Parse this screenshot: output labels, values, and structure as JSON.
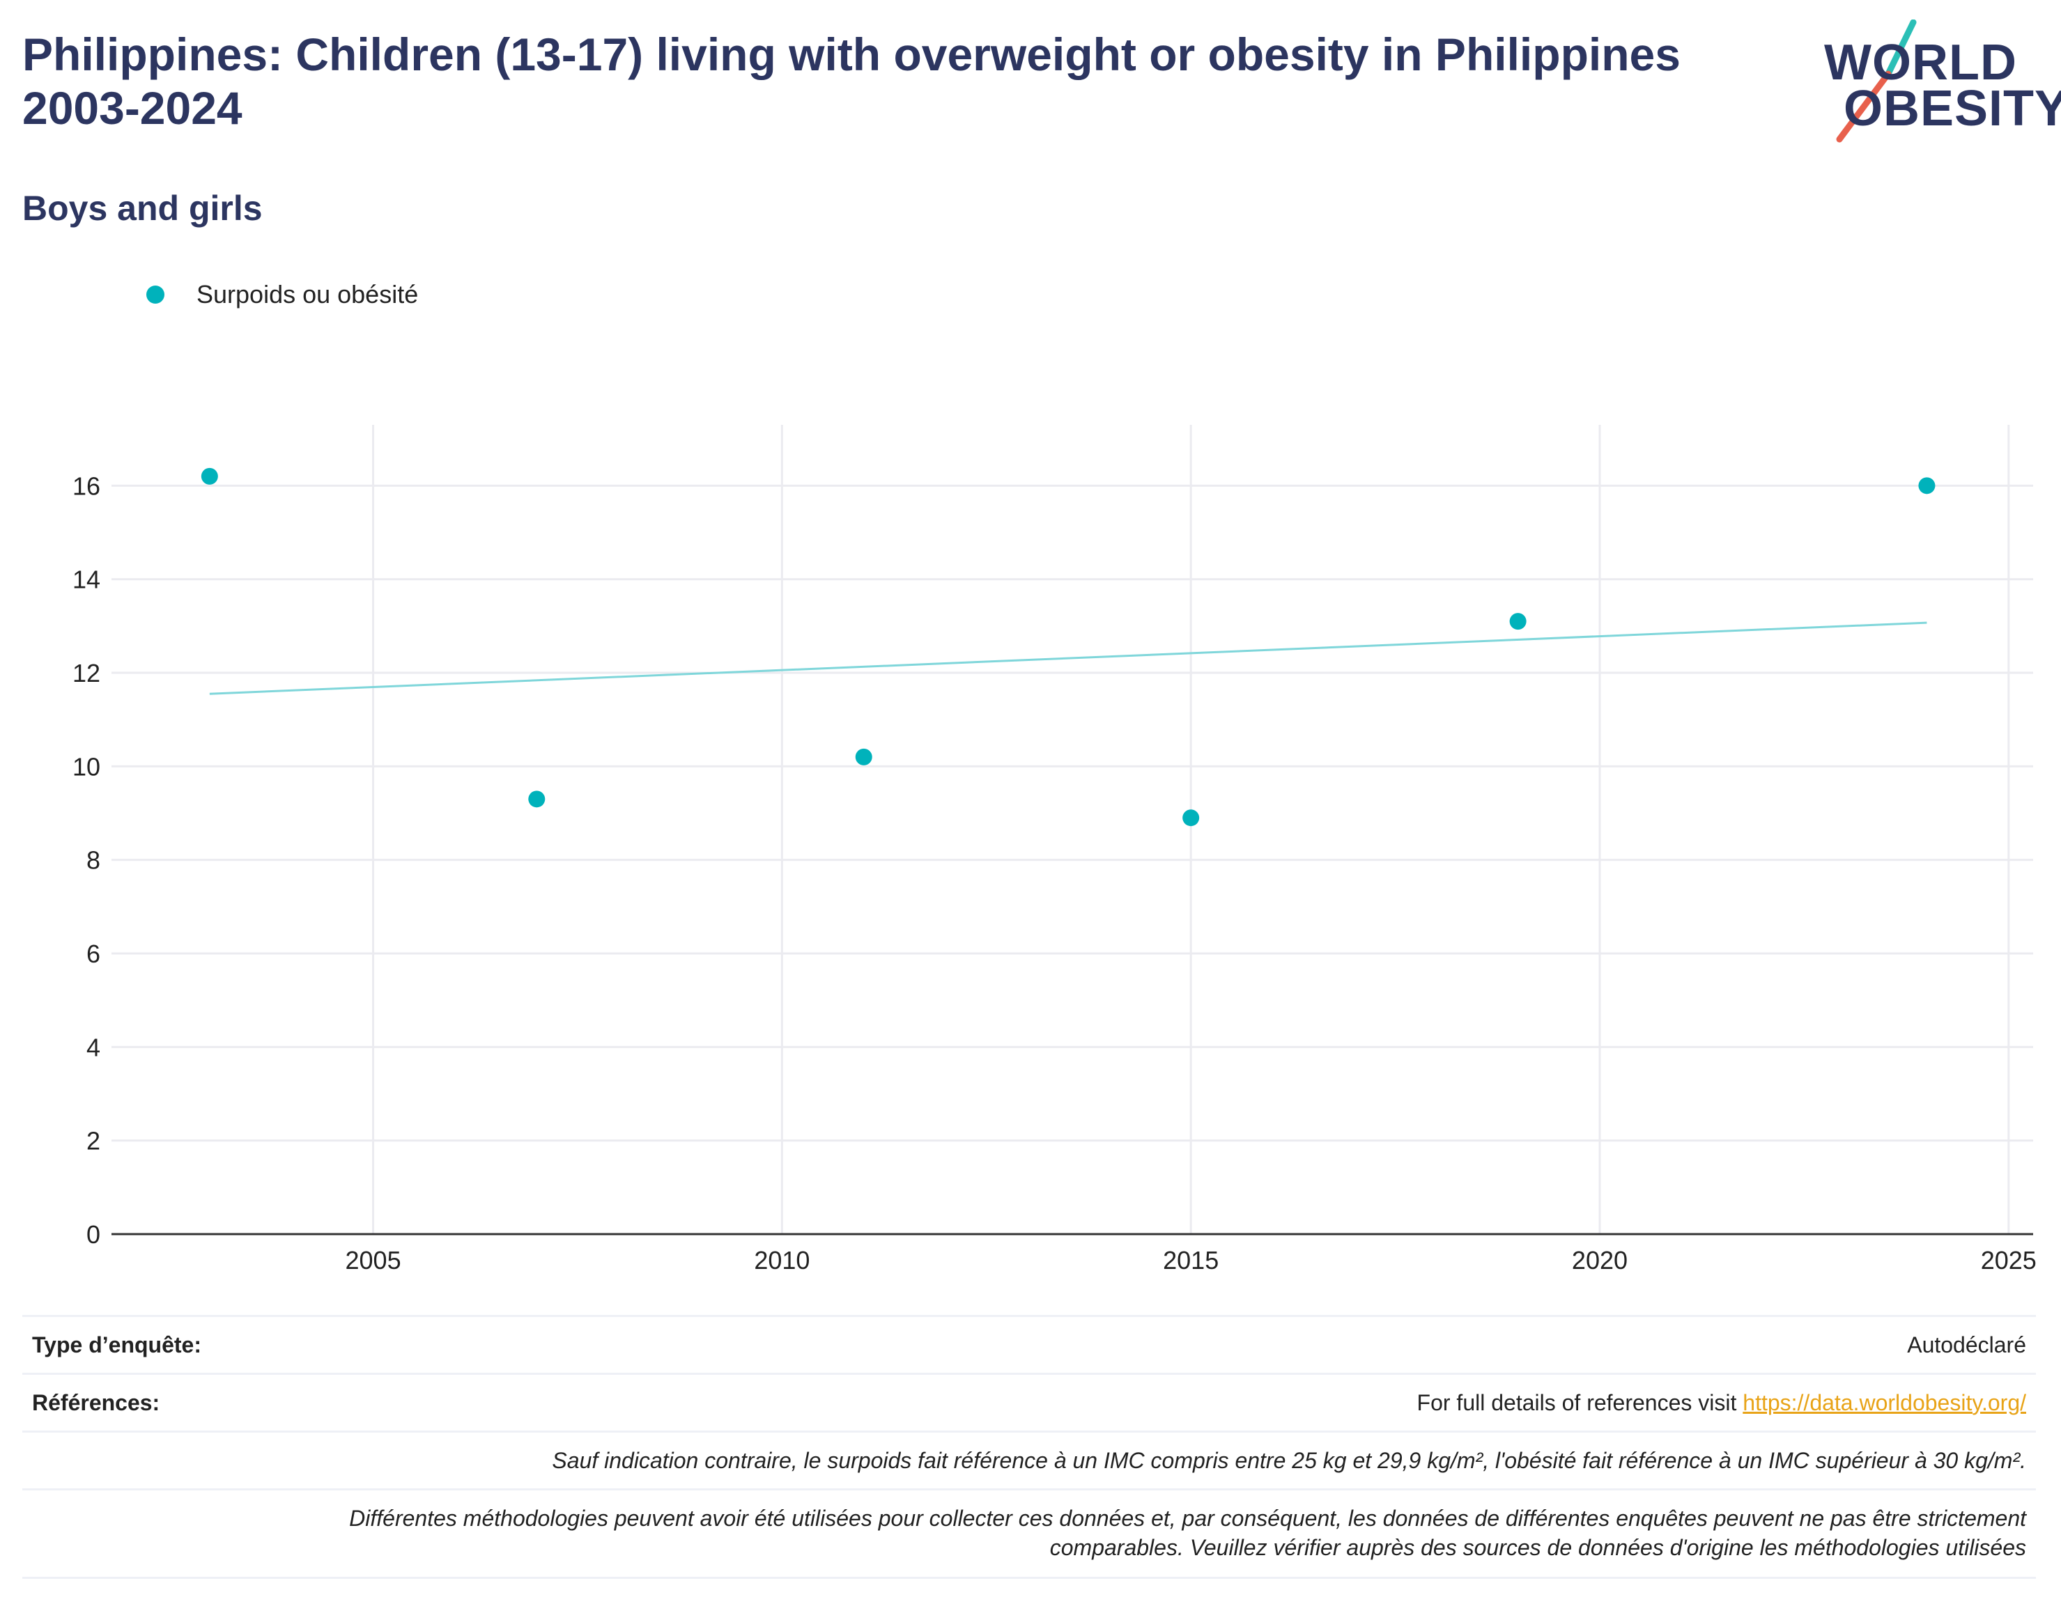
{
  "header": {
    "title": "Philippines: Children (13-17) living with overweight or obesity in Philippines 2003-2024",
    "subtitle": "Boys and girls"
  },
  "logo": {
    "line1": "WORLD",
    "line2": "OBESITY",
    "colors": {
      "text": "#2c3560",
      "slash_top": "#2bbfb6",
      "slash_bottom": "#e8604c"
    }
  },
  "colors": {
    "title": "#2c3560",
    "series": "#00b2bb",
    "trend": "#7fd6da",
    "grid": "#ebebf0",
    "axis": "#333333",
    "link": "#e8a317"
  },
  "chart_data": {
    "type": "scatter",
    "series": [
      {
        "name": "Surpoids ou obésité",
        "points": [
          {
            "x": 2003,
            "y": 16.2
          },
          {
            "x": 2007,
            "y": 9.3
          },
          {
            "x": 2011,
            "y": 10.2
          },
          {
            "x": 2015,
            "y": 8.9
          },
          {
            "x": 2019,
            "y": 13.1
          },
          {
            "x": 2024,
            "y": 16.0
          }
        ]
      }
    ],
    "trendline": {
      "x": [
        2003,
        2024
      ],
      "y": [
        11.55,
        13.07
      ]
    },
    "xlim": [
      2001.8,
      2025.3
    ],
    "ylim": [
      0,
      17.3
    ],
    "xticks": [
      2005,
      2010,
      2015,
      2020,
      2025
    ],
    "yticks": [
      0,
      2,
      4,
      6,
      8,
      10,
      12,
      14,
      16
    ],
    "grid": true,
    "legend": "top-left",
    "xlabel": "",
    "ylabel": ""
  },
  "info": {
    "survey_type_label": "Type d’enquête:",
    "survey_type_value": "Autodéclaré",
    "references_label": "Références:",
    "references_text": "For full details of references visit ",
    "references_link": "https://data.worldobesity.org/",
    "note1": "Sauf indication contraire, le surpoids fait référence à un IMC compris entre 25 kg et 29,9 kg/m², l'obésité fait référence à un IMC supérieur à 30 kg/m².",
    "note2_line1": "Différentes méthodologies peuvent avoir été utilisées pour collecter ces données et, par conséquent, les données de différentes enquêtes peuvent ne pas être strictement",
    "note2_line2": "comparables. Veuillez vérifier auprès des sources de données d'origine les méthodologies utilisées"
  }
}
